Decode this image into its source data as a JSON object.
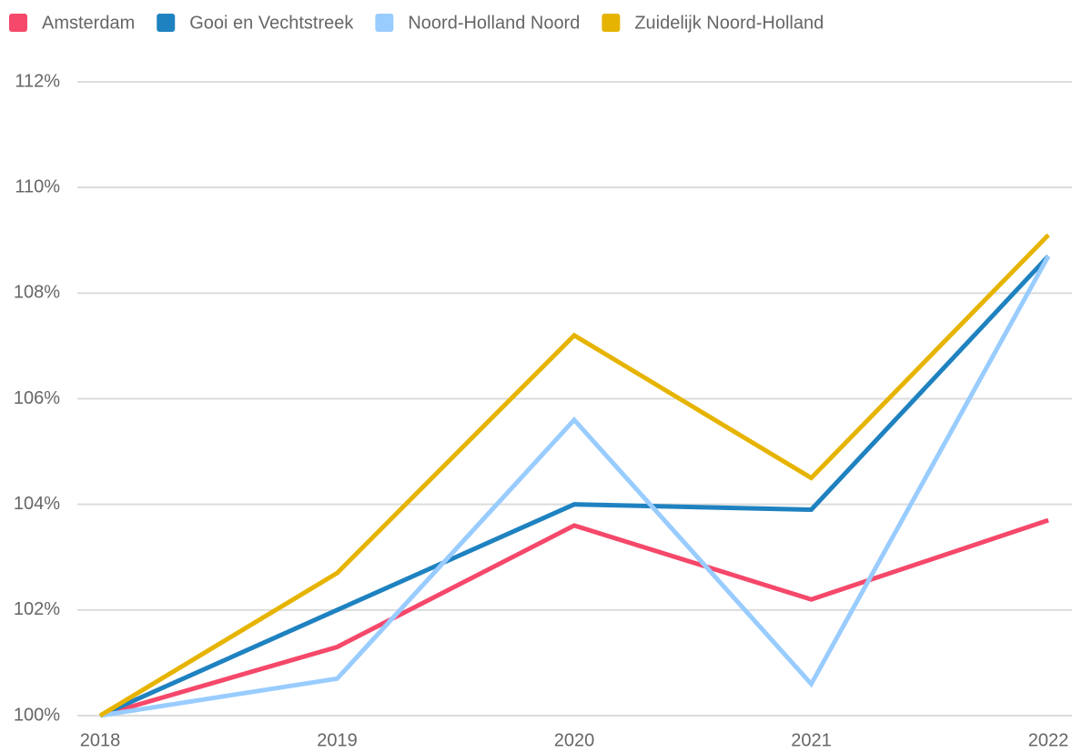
{
  "chart_data": {
    "type": "line",
    "categories": [
      "2018",
      "2019",
      "2020",
      "2021",
      "2022"
    ],
    "series": [
      {
        "name": "Amsterdam",
        "color": "#f5486a",
        "values": [
          100,
          101.3,
          103.6,
          102.2,
          103.7
        ]
      },
      {
        "name": "Gooi en Vechtstreek",
        "color": "#1f82c0",
        "values": [
          100,
          102.0,
          104.0,
          103.9,
          108.7
        ]
      },
      {
        "name": "Noord-Holland Noord",
        "color": "#99ccff",
        "values": [
          100,
          100.7,
          105.6,
          100.6,
          108.7
        ]
      },
      {
        "name": "Zuidelijk Noord-Holland",
        "color": "#e6b400",
        "values": [
          100,
          102.7,
          107.2,
          104.5,
          109.1
        ]
      }
    ],
    "ylim": [
      100,
      112
    ],
    "yticks": [
      {
        "value": 100,
        "label": "100%"
      },
      {
        "value": 102,
        "label": "102%"
      },
      {
        "value": 104,
        "label": "104%"
      },
      {
        "value": 106,
        "label": "106%"
      },
      {
        "value": 108,
        "label": "108%"
      },
      {
        "value": 110,
        "label": "110%"
      },
      {
        "value": 112,
        "label": "112%"
      }
    ],
    "grid": true,
    "legend": "top"
  }
}
